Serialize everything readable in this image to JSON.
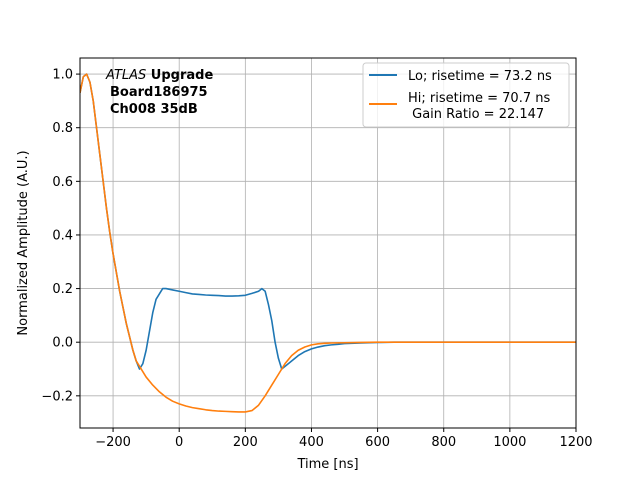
{
  "chart_data": {
    "type": "line",
    "xlabel": "Time [ns]",
    "ylabel": "Normalized Amplitude (A.U.)",
    "xlim": [
      -300,
      1200
    ],
    "ylim": [
      -0.32,
      1.06
    ],
    "grid": true,
    "legend_position": "top-right",
    "x_ticks": [
      -200,
      0,
      200,
      400,
      600,
      800,
      1000,
      1200
    ],
    "x_tick_labels": [
      "−200",
      "0",
      "200",
      "400",
      "600",
      "800",
      "1000",
      "1200"
    ],
    "y_ticks": [
      -0.2,
      0.0,
      0.2,
      0.4,
      0.6,
      0.8,
      1.0
    ],
    "y_tick_labels": [
      "−0.2",
      "0.0",
      "0.2",
      "0.4",
      "0.6",
      "0.8",
      "1.0"
    ],
    "annotation": {
      "line1_italic": "ATLAS",
      "line1_bold": " Upgrade",
      "line2": "Board186975",
      "line3": "Ch008 35dB"
    },
    "series": [
      {
        "name": "Lo; risetime = 73.2 ns",
        "color": "#1f77b4",
        "x": [
          -300,
          -290,
          -280,
          -270,
          -260,
          -250,
          -240,
          -230,
          -220,
          -210,
          -200,
          -190,
          -180,
          -170,
          -160,
          -150,
          -140,
          -130,
          -120,
          -110,
          -100,
          -90,
          -80,
          -70,
          -60,
          -50,
          -40,
          -20,
          0,
          20,
          40,
          60,
          80,
          100,
          120,
          140,
          160,
          180,
          200,
          220,
          240,
          250,
          260,
          270,
          280,
          290,
          300,
          310,
          320,
          340,
          360,
          380,
          400,
          420,
          440,
          460,
          480,
          500,
          550,
          600,
          650,
          700,
          800,
          900,
          1000,
          1100,
          1200
        ],
        "y": [
          0.93,
          0.99,
          1.0,
          0.97,
          0.9,
          0.8,
          0.7,
          0.6,
          0.5,
          0.41,
          0.33,
          0.26,
          0.19,
          0.13,
          0.07,
          0.02,
          -0.03,
          -0.07,
          -0.1,
          -0.08,
          -0.03,
          0.04,
          0.11,
          0.16,
          0.18,
          0.2,
          0.2,
          0.195,
          0.19,
          0.185,
          0.18,
          0.178,
          0.176,
          0.175,
          0.174,
          0.172,
          0.172,
          0.173,
          0.175,
          0.182,
          0.19,
          0.2,
          0.19,
          0.14,
          0.08,
          0.0,
          -0.06,
          -0.1,
          -0.09,
          -0.07,
          -0.05,
          -0.035,
          -0.025,
          -0.018,
          -0.013,
          -0.01,
          -0.008,
          -0.005,
          -0.003,
          -0.001,
          0.0,
          0.0,
          0.0,
          0.0,
          0.0,
          0.0,
          0.0
        ]
      },
      {
        "name": "Hi; risetime = 70.7 ns\n Gain Ratio = 22.147",
        "color": "#ff7f0e",
        "x": [
          -300,
          -290,
          -280,
          -270,
          -260,
          -250,
          -240,
          -230,
          -220,
          -210,
          -200,
          -190,
          -180,
          -170,
          -160,
          -150,
          -140,
          -130,
          -120,
          -110,
          -100,
          -80,
          -60,
          -40,
          -20,
          0,
          20,
          40,
          60,
          80,
          100,
          120,
          140,
          160,
          180,
          200,
          220,
          240,
          260,
          280,
          300,
          320,
          340,
          360,
          380,
          400,
          420,
          440,
          460,
          500,
          550,
          600,
          700,
          800,
          900,
          1000,
          1100,
          1200
        ],
        "y": [
          0.93,
          0.99,
          1.0,
          0.97,
          0.9,
          0.8,
          0.7,
          0.6,
          0.5,
          0.41,
          0.33,
          0.26,
          0.19,
          0.13,
          0.07,
          0.02,
          -0.03,
          -0.07,
          -0.09,
          -0.11,
          -0.13,
          -0.16,
          -0.185,
          -0.205,
          -0.22,
          -0.23,
          -0.238,
          -0.244,
          -0.248,
          -0.252,
          -0.255,
          -0.257,
          -0.258,
          -0.259,
          -0.26,
          -0.26,
          -0.255,
          -0.235,
          -0.2,
          -0.16,
          -0.12,
          -0.08,
          -0.05,
          -0.03,
          -0.018,
          -0.01,
          -0.006,
          -0.004,
          -0.003,
          -0.002,
          -0.001,
          0.0,
          0.0,
          0.0,
          0.0,
          0.0,
          0.0,
          0.0
        ]
      }
    ]
  }
}
